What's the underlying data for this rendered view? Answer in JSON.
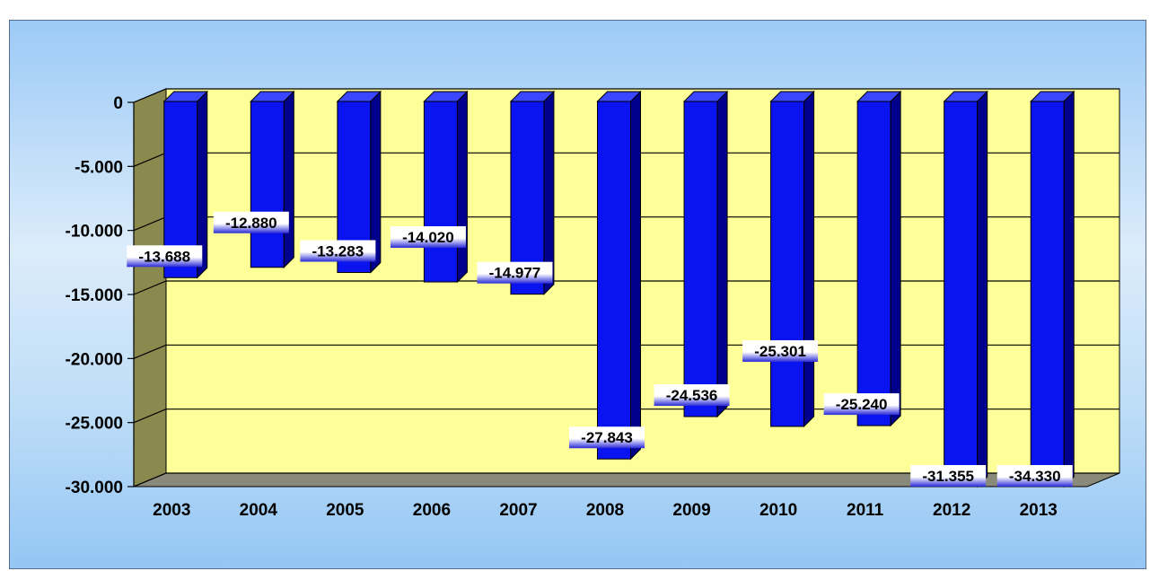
{
  "chart_data": {
    "type": "bar",
    "categories": [
      "2003",
      "2004",
      "2005",
      "2006",
      "2007",
      "2008",
      "2009",
      "2010",
      "2011",
      "2012",
      "2013"
    ],
    "values": [
      -13688,
      -12880,
      -13283,
      -14020,
      -14977,
      -27843,
      -24536,
      -25301,
      -25240,
      -31355,
      -34330
    ],
    "data_labels": [
      "-13.688",
      "-12.880",
      "-13.283",
      "-14.020",
      "-14.977",
      "-27.843",
      "-24.536",
      "-25.301",
      "-25.240",
      "-31.355",
      "-34.330"
    ],
    "ylim": [
      -30000,
      0
    ],
    "yticks": [
      0,
      -5000,
      -10000,
      -15000,
      -20000,
      -25000,
      -30000
    ],
    "ytick_labels": [
      "0",
      "-5.000",
      "-10.000",
      "-15.000",
      "-20.000",
      "-25.000",
      "-30.000"
    ],
    "grid": true,
    "legend": "none",
    "style": "3d",
    "colors": {
      "bar_front": "#0a14f0",
      "bar_side": "#00008c",
      "bar_top": "#3a46ff",
      "plot_back": "#ffff99",
      "plot_wall": "#8a8a4e",
      "plot_floor": "#8a8a7a",
      "label_bg": "#ffffff",
      "label_fade": "#2a2ad8"
    }
  }
}
